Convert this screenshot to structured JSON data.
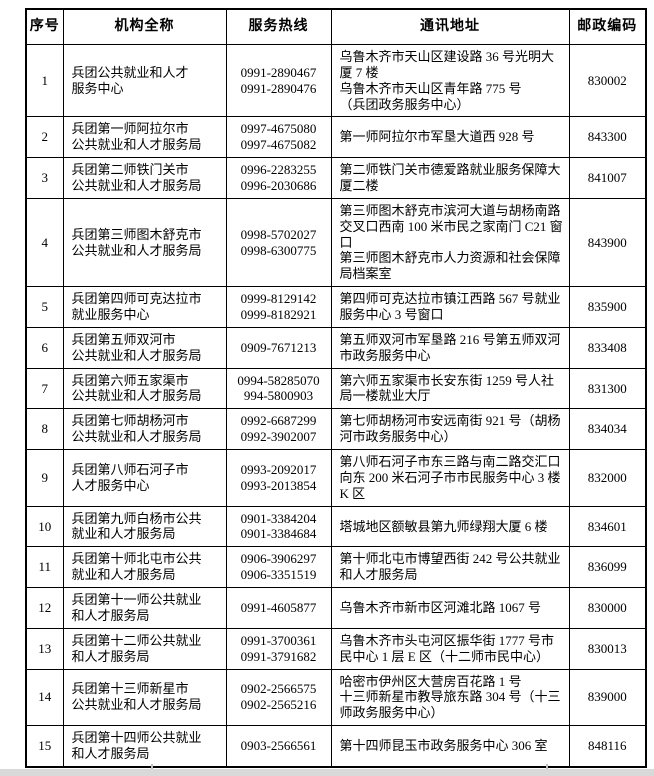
{
  "colors": {
    "page_background": "#ffffff",
    "table_border": "#000000",
    "text": "#000000",
    "scrollbar_track": "#d9d9d9"
  },
  "table": {
    "headers": [
      "序号",
      "机构全称",
      "服务热线",
      "通讯地址",
      "邮政编码"
    ],
    "rows": [
      {
        "no": "1",
        "name": [
          "兵团公共就业和人才",
          "服务中心"
        ],
        "hotline": [
          "0991-2890467",
          "0991-2890476"
        ],
        "address": [
          "乌鲁木齐市天山区建设路 36 号光明大厦 7 楼",
          "乌鲁木齐市天山区青年路 775 号",
          "（兵团政务服务中心）"
        ],
        "postcode": "830002"
      },
      {
        "no": "2",
        "name": [
          "兵团第一师阿拉尔市",
          "公共就业和人才服务局"
        ],
        "hotline": [
          "0997-4675080",
          "0997-4675082"
        ],
        "address": [
          "第一师阿拉尔市军垦大道西 928 号"
        ],
        "postcode": "843300"
      },
      {
        "no": "3",
        "name": [
          "兵团第二师铁门关市",
          "公共就业和人才服务局"
        ],
        "hotline": [
          "0996-2283255",
          "0996-2030686"
        ],
        "address": [
          "第二师铁门关市德爱路就业服务保障大厦二楼"
        ],
        "postcode": "841007"
      },
      {
        "no": "4",
        "name": [
          "兵团第三师图木舒克市",
          "公共就业和人才服务局"
        ],
        "hotline": [
          "0998-5702027",
          "0998-6300775"
        ],
        "address": [
          "第三师图木舒克市滨河大道与胡杨南路交叉口西南 100 米市民之家南门 C21 窗口",
          "第三师图木舒克市人力资源和社会保障局档案室"
        ],
        "postcode": "843900"
      },
      {
        "no": "5",
        "name": [
          "兵团第四师可克达拉市",
          "就业服务中心"
        ],
        "hotline": [
          "0999-8129142",
          "0999-8182921"
        ],
        "address": [
          "第四师可克达拉市镇江西路 567 号就业服务中心 3 号窗口"
        ],
        "postcode": "835900"
      },
      {
        "no": "6",
        "name": [
          "兵团第五师双河市",
          "公共就业和人才服务局"
        ],
        "hotline": [
          "0909-7671213"
        ],
        "address": [
          "第五师双河市军垦路 216 号第五师双河市政务服务中心"
        ],
        "postcode": "833408"
      },
      {
        "no": "7",
        "name": [
          "兵团第六师五家渠市",
          "公共就业和人才服务局"
        ],
        "hotline": [
          "0994-58285070",
          "994-5800903"
        ],
        "address": [
          "第六师五家渠市长安东街 1259 号人社局一楼就业大厅"
        ],
        "postcode": "831300"
      },
      {
        "no": "8",
        "name": [
          "兵团第七师胡杨河市",
          "公共就业和人才服务局"
        ],
        "hotline": [
          "0992-6687299",
          "0992-3902007"
        ],
        "address": [
          "第七师胡杨河市安远南街 921 号（胡杨河市政务服务中心）"
        ],
        "postcode": "834034"
      },
      {
        "no": "9",
        "name": [
          "兵团第八师石河子市",
          "人才服务中心"
        ],
        "hotline": [
          "0993-2092017",
          "0993-2013854"
        ],
        "address": [
          "第八师石河子市东三路与南二路交汇口向东 200 米石河子市市民服务中心 3 楼 K 区"
        ],
        "postcode": "832000"
      },
      {
        "no": "10",
        "name": [
          "兵团第九师白杨市公共",
          "就业和人才服务局"
        ],
        "hotline": [
          "0901-3384204",
          "0901-3384684"
        ],
        "address": [
          "塔城地区额敏县第九师绿翔大厦 6 楼"
        ],
        "postcode": "834601"
      },
      {
        "no": "11",
        "name": [
          "兵团第十师北屯市公共",
          "就业和人才服务局"
        ],
        "hotline": [
          "0906-3906297",
          "0906-3351519"
        ],
        "address": [
          "第十师北屯市博望西街 242 号公共就业和人才服务局"
        ],
        "postcode": "836099"
      },
      {
        "no": "12",
        "name": [
          "兵团第十一师公共就业",
          "和人才服务局"
        ],
        "hotline": [
          "0991-4605877"
        ],
        "address": [
          "乌鲁木齐市新市区河滩北路 1067 号"
        ],
        "postcode": "830000"
      },
      {
        "no": "13",
        "name": [
          "兵团第十二师公共就业",
          "和人才服务局"
        ],
        "hotline": [
          "0991-3700361",
          "0991-3791682"
        ],
        "address": [
          "乌鲁木齐市头屯河区振华街 1777 号市民中心 1 层 E 区（十二师市民中心）"
        ],
        "postcode": "830013"
      },
      {
        "no": "14",
        "name": [
          "兵团第十三师新星市",
          "公共就业和人才服务局"
        ],
        "hotline": [
          "0902-2566575",
          "0902-2565216"
        ],
        "address": [
          "哈密市伊州区大营房百花路 1 号",
          "十三师新星市教导旅东路 304 号（十三师政务服务中心）"
        ],
        "postcode": "839000"
      },
      {
        "no": "15",
        "name": [
          "兵团第十四师公共就业",
          "和人才服务局"
        ],
        "hotline": [
          "0903-2566561"
        ],
        "address": [
          "第十四师昆玉市政务服务中心 306 室"
        ],
        "postcode": "848116"
      }
    ]
  }
}
